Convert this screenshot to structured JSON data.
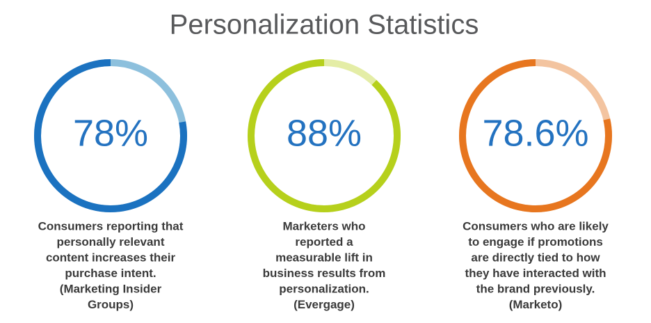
{
  "title": "Personalization Statistics",
  "chart_data": [
    {
      "type": "donut",
      "values": [
        78
      ],
      "value_labels": [
        "78%"
      ],
      "color": "#1b72c0",
      "track_color": "#8dc0dd",
      "caption": [
        "Consumers reporting that",
        "personally relevant",
        "content increases their",
        "purchase intent.",
        "(Marketing Insider",
        "Groups)"
      ]
    },
    {
      "type": "donut",
      "values": [
        88
      ],
      "value_labels": [
        "88%"
      ],
      "color": "#b6d01c",
      "track_color": "#e4eda6",
      "caption": [
        "Marketers who",
        "reported a",
        "measurable lift in",
        "business results from",
        "personalization.",
        "(Evergage)"
      ]
    },
    {
      "type": "donut",
      "values": [
        78.6
      ],
      "value_labels": [
        "78.6%"
      ],
      "color": "#e7761f",
      "track_color": "#f3c4a0",
      "caption": [
        "Consumers who are likely",
        "to engage if promotions",
        "are directly tied to how",
        "they have interacted with",
        "the brand previously.",
        "(Marketo)"
      ]
    }
  ]
}
